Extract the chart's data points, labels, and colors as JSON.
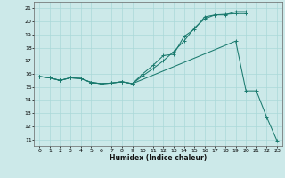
{
  "xlabel": "Humidex (Indice chaleur)",
  "xlim": [
    -0.5,
    23.5
  ],
  "ylim": [
    10.5,
    21.5
  ],
  "xticks": [
    0,
    1,
    2,
    3,
    4,
    5,
    6,
    7,
    8,
    9,
    10,
    11,
    12,
    13,
    14,
    15,
    16,
    17,
    18,
    19,
    20,
    21,
    22,
    23
  ],
  "yticks": [
    11,
    12,
    13,
    14,
    15,
    16,
    17,
    18,
    19,
    20,
    21
  ],
  "background_color": "#cce9e9",
  "grid_color": "#aad8d8",
  "line_color": "#1a7a6e",
  "line1_x": [
    0,
    1,
    2,
    3,
    4,
    5,
    6,
    7,
    8,
    9,
    10,
    11,
    12,
    13,
    14,
    15,
    16,
    17,
    18,
    19,
    20
  ],
  "line1_y": [
    15.8,
    15.7,
    15.5,
    15.7,
    15.65,
    15.35,
    15.25,
    15.3,
    15.4,
    15.25,
    15.85,
    16.4,
    17.0,
    17.7,
    18.5,
    19.5,
    20.2,
    20.5,
    20.5,
    20.75,
    20.75
  ],
  "line2_x": [
    0,
    1,
    2,
    3,
    4,
    5,
    6,
    7,
    8,
    9,
    10,
    11,
    12,
    13,
    14,
    15,
    16,
    17,
    18,
    19,
    20
  ],
  "line2_y": [
    15.8,
    15.7,
    15.5,
    15.7,
    15.65,
    15.35,
    15.25,
    15.3,
    15.4,
    15.25,
    16.0,
    16.65,
    17.4,
    17.5,
    18.85,
    19.4,
    20.35,
    20.5,
    20.55,
    20.6,
    20.6
  ],
  "line3_x": [
    0,
    1,
    2,
    3,
    4,
    5,
    6,
    7,
    8,
    9,
    19,
    20,
    21,
    22,
    23
  ],
  "line3_y": [
    15.8,
    15.7,
    15.5,
    15.7,
    15.65,
    15.35,
    15.25,
    15.3,
    15.4,
    15.25,
    18.5,
    14.7,
    14.7,
    12.7,
    10.9
  ]
}
